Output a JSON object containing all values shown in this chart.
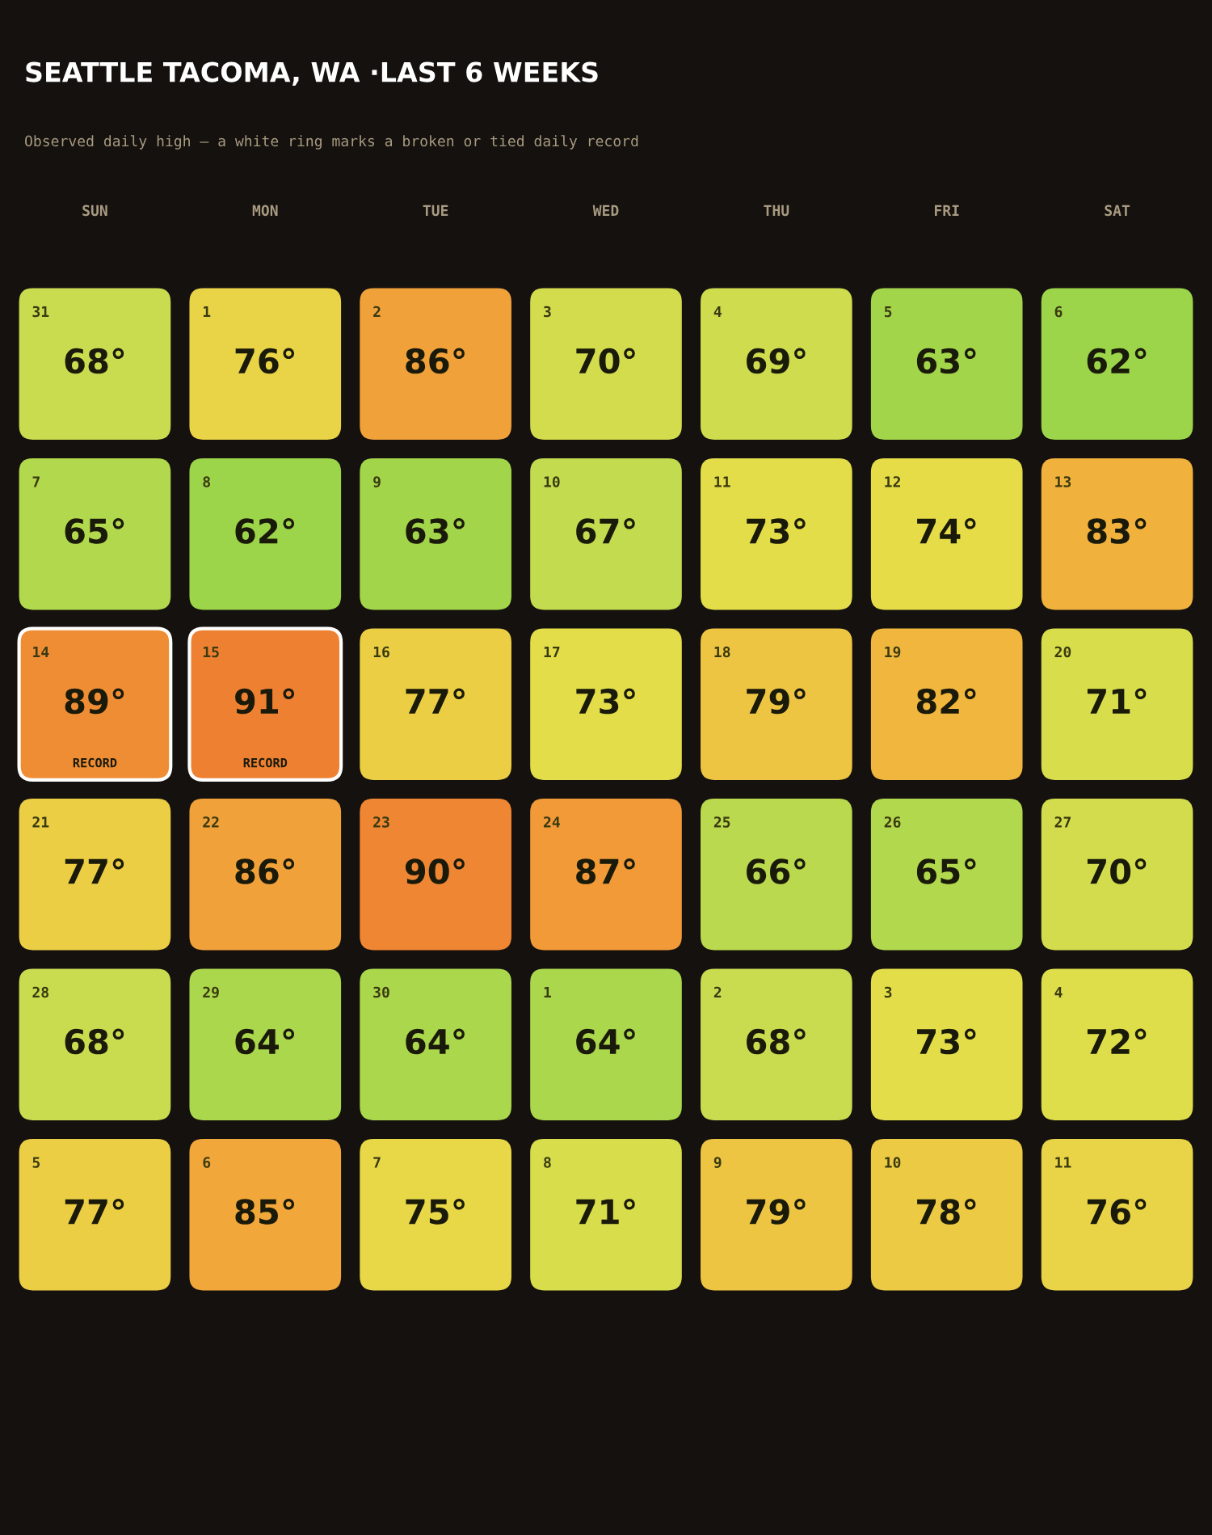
{
  "chart_data": {
    "type": "heatmap",
    "title": "SEATTLE TACOMA, WA ·LAST 6 WEEKS",
    "subtitle": "Observed daily high — a white ring marks a broken or tied daily record",
    "categories": [
      "SUN",
      "MON",
      "TUE",
      "WED",
      "THU",
      "FRI",
      "SAT"
    ],
    "y_categories": [
      null,
      null,
      null,
      null,
      null,
      null
    ],
    "cells": [
      [
        68,
        76,
        86,
        70,
        69,
        63,
        62
      ],
      [
        65,
        62,
        63,
        67,
        73,
        74,
        83
      ],
      [
        89,
        91,
        77,
        73,
        79,
        82,
        71
      ],
      [
        77,
        86,
        90,
        87,
        66,
        65,
        70
      ],
      [
        68,
        64,
        64,
        64,
        68,
        73,
        72
      ],
      [
        77,
        85,
        75,
        71,
        79,
        78,
        76
      ]
    ],
    "cell_labels": [
      [
        "68°",
        "76°",
        "86°",
        "70°",
        "69°",
        "63°",
        "62°"
      ],
      [
        "65°",
        "62°",
        "63°",
        "67°",
        "73°",
        "74°",
        "83°"
      ],
      [
        "89°",
        "91°",
        "77°",
        "73°",
        "79°",
        "82°",
        "71°"
      ],
      [
        "77°",
        "86°",
        "90°",
        "87°",
        "66°",
        "65°",
        "70°"
      ],
      [
        "68°",
        "64°",
        "64°",
        "64°",
        "68°",
        "73°",
        "72°"
      ],
      [
        "77°",
        "85°",
        "75°",
        "71°",
        "79°",
        "78°",
        "76°"
      ]
    ],
    "annotations": [
      "31",
      "1",
      "2",
      "3",
      "4",
      "5",
      "6",
      "7",
      "8",
      "9",
      "10",
      "11",
      "12",
      "13",
      "14\nRECORD",
      "15\nRECORD",
      "16",
      "17",
      "18",
      "19",
      "20",
      "21",
      "22",
      "23",
      "24",
      "25",
      "26",
      "27",
      "28",
      "29",
      "30",
      "1",
      "2",
      "3",
      "4",
      "5",
      "6",
      "7",
      "8",
      "9",
      "10",
      "11"
    ],
    "colors": [
      "#9cd44a",
      "#c8dc50",
      "#e6dd48",
      "#eec442",
      "#f2a63a",
      "#ee8032"
    ],
    "tick_labels": "x"
  }
}
